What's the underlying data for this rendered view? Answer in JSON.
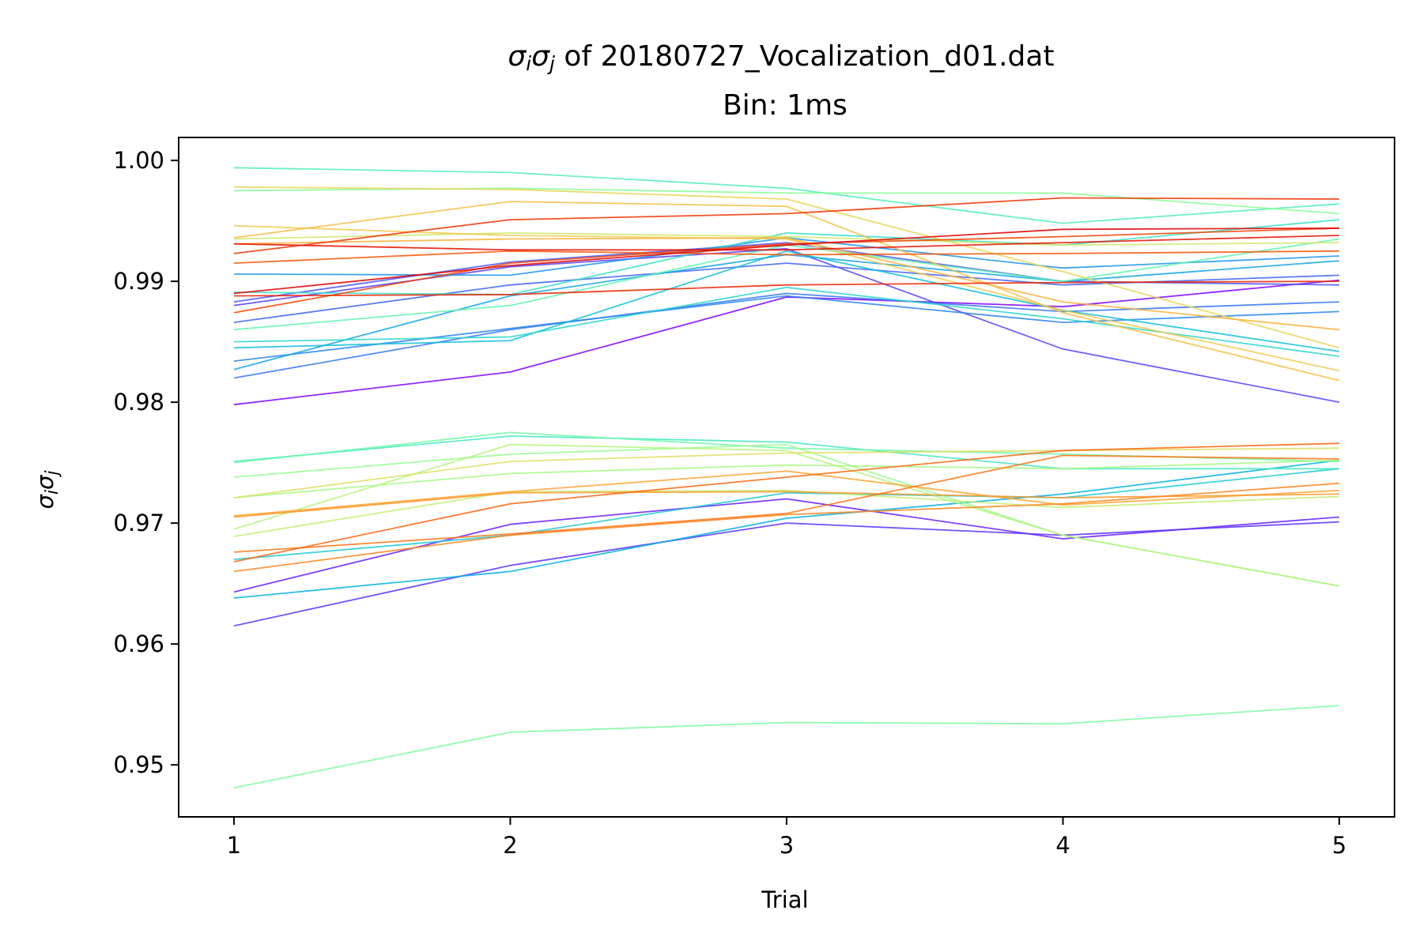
{
  "chart_data": {
    "type": "line",
    "title_prefix_sigma_i": "σ",
    "title_prefix_sub_i": "i",
    "title_prefix_sigma_j": "σ",
    "title_prefix_sub_j": "j",
    "title_rest": " of 20180727_Vocalization_d01.dat",
    "subtitle": "Bin: 1ms",
    "xlabel": "Trial",
    "ylabel_sigma_i": "σ",
    "ylabel_sub_i": "i",
    "ylabel_sigma_j": "σ",
    "ylabel_sub_j": "j",
    "x": [
      1,
      2,
      3,
      4,
      5
    ],
    "xticks": [
      "1",
      "2",
      "3",
      "4",
      "5"
    ],
    "yticks": [
      "0.95",
      "0.96",
      "0.97",
      "0.98",
      "0.99",
      "1.00"
    ],
    "ytick_values": [
      0.95,
      0.96,
      0.97,
      0.98,
      0.99,
      1.0
    ],
    "xlim": [
      0.8,
      5.2
    ],
    "ylim": [
      0.9457,
      1.0019
    ],
    "grid": false,
    "legend": "none",
    "series": [
      {
        "color": "#7f00ff",
        "values": [
          0.9798,
          0.9825,
          0.9887,
          0.9879,
          0.9901
        ]
      },
      {
        "color": "#6a1ffe",
        "values": [
          0.9643,
          0.9699,
          0.972,
          0.9687,
          0.9705
        ]
      },
      {
        "color": "#5a33fc",
        "values": [
          0.9615,
          0.9665,
          0.97,
          0.969,
          0.9701
        ]
      },
      {
        "color": "#5544fa",
        "values": [
          0.988,
          0.9912,
          0.9927,
          0.9844,
          0.98
        ]
      },
      {
        "color": "#4a55f8",
        "values": [
          0.9883,
          0.9916,
          0.9932,
          0.99,
          0.9897
        ]
      },
      {
        "color": "#4066f5",
        "values": [
          0.9866,
          0.9897,
          0.9915,
          0.9897,
          0.9905
        ]
      },
      {
        "color": "#3677f2",
        "values": [
          0.982,
          0.986,
          0.989,
          0.9875,
          0.9883
        ]
      },
      {
        "color": "#2c86ee",
        "values": [
          0.9834,
          0.9861,
          0.9888,
          0.9866,
          0.9875
        ]
      },
      {
        "color": "#1e95ea",
        "values": [
          0.9906,
          0.9905,
          0.9936,
          0.9911,
          0.9921
        ]
      },
      {
        "color": "#12a4e5",
        "values": [
          0.9827,
          0.9888,
          0.9922,
          0.99,
          0.9917
        ]
      },
      {
        "color": "#06b1e0",
        "values": [
          0.9638,
          0.966,
          0.9704,
          0.9724,
          0.9752
        ]
      },
      {
        "color": "#10beda",
        "values": [
          0.9845,
          0.9851,
          0.9925,
          0.9876,
          0.9842
        ]
      },
      {
        "color": "#1ecad4",
        "values": [
          0.967,
          0.969,
          0.9725,
          0.9721,
          0.9745
        ]
      },
      {
        "color": "#2bd5cd",
        "values": [
          0.985,
          0.9854,
          0.9895,
          0.9869,
          0.9838
        ]
      },
      {
        "color": "#38dfc7",
        "values": [
          0.9891,
          0.9889,
          0.994,
          0.993,
          0.9951
        ]
      },
      {
        "color": "#45e8c0",
        "values": [
          0.9751,
          0.9772,
          0.9767,
          0.9745,
          0.9745
        ]
      },
      {
        "color": "#52efb8",
        "values": [
          0.9994,
          0.999,
          0.9977,
          0.9948,
          0.9964
        ]
      },
      {
        "color": "#60f5b0",
        "values": [
          0.986,
          0.988,
          0.993,
          0.99,
          0.9935
        ]
      },
      {
        "color": "#6efaa8",
        "values": [
          0.975,
          0.9775,
          0.9762,
          0.9757,
          0.9751
        ]
      },
      {
        "color": "#7cfd9f",
        "values": [
          0.9481,
          0.9527,
          0.9535,
          0.9534,
          0.9549
        ]
      },
      {
        "color": "#8afe97",
        "values": [
          0.9975,
          0.9977,
          0.9973,
          0.9973,
          0.9956
        ]
      },
      {
        "color": "#98fd8e",
        "values": [
          0.9738,
          0.9757,
          0.9765,
          0.969,
          0.9648
        ]
      },
      {
        "color": "#a6fa85",
        "values": [
          0.9721,
          0.9741,
          0.9748,
          0.9745,
          0.9752
        ]
      },
      {
        "color": "#b4f57c",
        "values": [
          0.9695,
          0.9765,
          0.976,
          0.969,
          0.9648
        ]
      },
      {
        "color": "#c2ef73",
        "values": [
          0.9689,
          0.9726,
          0.9727,
          0.9713,
          0.9722
        ]
      },
      {
        "color": "#d0e86a",
        "values": [
          0.9935,
          0.994,
          0.9937,
          0.993,
          0.9932
        ]
      },
      {
        "color": "#dcdf60",
        "values": [
          0.9721,
          0.9751,
          0.9758,
          0.976,
          0.9762
        ]
      },
      {
        "color": "#e8d557",
        "values": [
          0.9978,
          0.9976,
          0.9968,
          0.9908,
          0.9845
        ]
      },
      {
        "color": "#f0ca4d",
        "values": [
          0.9946,
          0.9938,
          0.9935,
          0.9876,
          0.9826
        ]
      },
      {
        "color": "#f6be44",
        "values": [
          0.9936,
          0.9966,
          0.9962,
          0.9874,
          0.9818
        ]
      },
      {
        "color": "#fbb13a",
        "values": [
          0.9931,
          0.9935,
          0.9936,
          0.9883,
          0.986
        ]
      },
      {
        "color": "#fea431",
        "values": [
          0.9706,
          0.9726,
          0.9743,
          0.9715,
          0.9727
        ]
      },
      {
        "color": "#ff9628",
        "values": [
          0.9705,
          0.9725,
          0.9726,
          0.9721,
          0.9724
        ]
      },
      {
        "color": "#fe861f",
        "values": [
          0.966,
          0.969,
          0.9707,
          0.9716,
          0.9733
        ]
      },
      {
        "color": "#fc7717",
        "values": [
          0.9676,
          0.9691,
          0.9708,
          0.9756,
          0.9753
        ]
      },
      {
        "color": "#fa660f",
        "values": [
          0.9668,
          0.9716,
          0.9738,
          0.976,
          0.9766
        ]
      },
      {
        "color": "#f55507",
        "values": [
          0.9915,
          0.9925,
          0.9922,
          0.9923,
          0.9925
        ]
      },
      {
        "color": "#f24303",
        "values": [
          0.9874,
          0.9915,
          0.9931,
          0.9937,
          0.9944
        ]
      },
      {
        "color": "#ee3301",
        "values": [
          0.9923,
          0.9951,
          0.9956,
          0.9969,
          0.9968
        ]
      },
      {
        "color": "#ea2200",
        "values": [
          0.9888,
          0.9889,
          0.9897,
          0.9899,
          0.99
        ]
      },
      {
        "color": "#e51000",
        "values": [
          0.9931,
          0.9926,
          0.9926,
          0.9932,
          0.9938
        ]
      },
      {
        "color": "#df0000",
        "values": [
          0.989,
          0.9913,
          0.993,
          0.9943,
          0.9944
        ]
      }
    ]
  }
}
